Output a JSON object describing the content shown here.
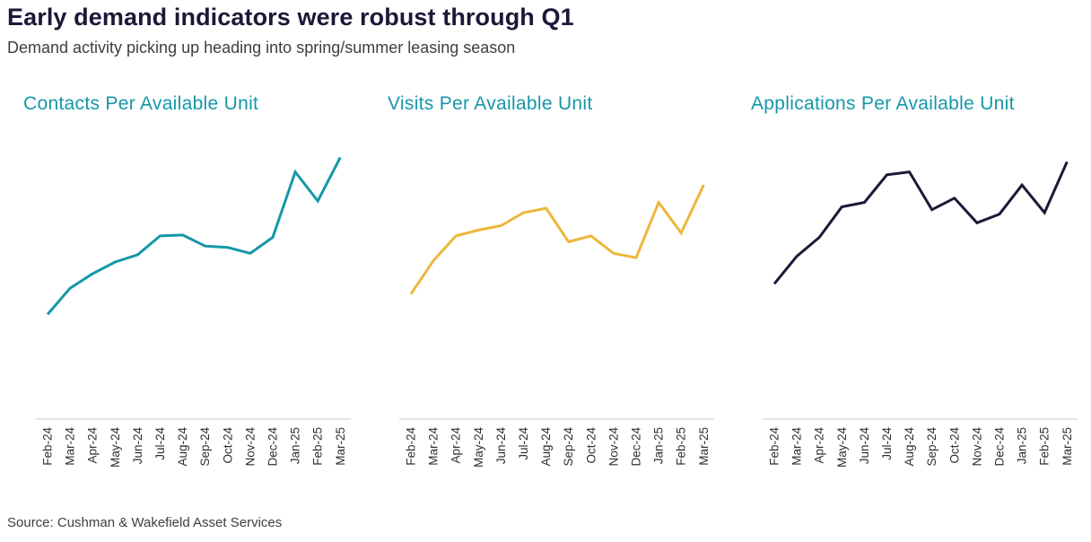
{
  "header": {
    "title": "Early demand indicators were robust through Q1",
    "subtitle": "Demand activity picking up heading into spring/summer leasing season"
  },
  "footer": {
    "source": "Source: Cushman & Wakefield Asset Services"
  },
  "colors": {
    "teal": "#1597a9",
    "gold": "#ecb73b",
    "navy": "#1b1838",
    "axis": "#d4d4d4"
  },
  "chart_data": [
    {
      "type": "line",
      "title": "Contacts Per Available Unit",
      "color": "#1597a9",
      "categories": [
        "Feb-24",
        "Mar-24",
        "Apr-24",
        "May-24",
        "Jun-24",
        "Jul-24",
        "Aug-24",
        "Sep-24",
        "Oct-24",
        "Nov-24",
        "Dec-24",
        "Jan-25",
        "Feb-25",
        "Mar-25"
      ],
      "values": [
        36,
        45,
        50,
        54,
        56.5,
        63,
        63.3,
        59.5,
        59,
        57,
        62.5,
        85,
        75,
        90
      ],
      "ylim": [
        0,
        100
      ],
      "grid": false
    },
    {
      "type": "line",
      "title": "Visits Per Available Unit",
      "color": "#ecb73b",
      "categories": [
        "Feb-24",
        "Mar-24",
        "Apr-24",
        "May-24",
        "Jun-24",
        "Jul-24",
        "Aug-24",
        "Sep-24",
        "Oct-24",
        "Nov-24",
        "Dec-24",
        "Jan-25",
        "Feb-25",
        "Mar-25"
      ],
      "values": [
        43,
        54.5,
        63,
        65,
        66.5,
        71,
        72.5,
        61,
        63,
        57,
        55.5,
        74.5,
        64,
        80.5
      ],
      "ylim": [
        0,
        100
      ],
      "grid": false
    },
    {
      "type": "line",
      "title": "Applications Per Available Unit",
      "color": "#1b1838",
      "categories": [
        "Feb-24",
        "Mar-24",
        "Apr-24",
        "May-24",
        "Jun-24",
        "Jul-24",
        "Aug-24",
        "Sep-24",
        "Oct-24",
        "Nov-24",
        "Dec-24",
        "Jan-25",
        "Feb-25",
        "Mar-25"
      ],
      "values": [
        46.5,
        56,
        62.5,
        73,
        74.5,
        84,
        85,
        72,
        76,
        67.5,
        70.5,
        80.5,
        71,
        88.5
      ],
      "ylim": [
        0,
        100
      ],
      "grid": false
    }
  ]
}
